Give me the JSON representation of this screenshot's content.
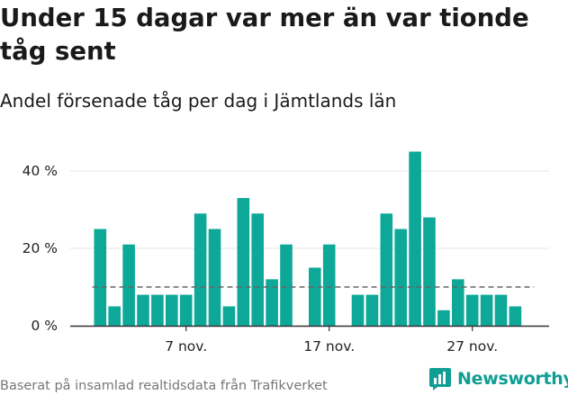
{
  "title": "Under 15 dagar var mer än var tionde tåg sent",
  "subtitle": "Andel försenade tåg per dag i Jämtlands län",
  "source": "Baserat på insamlad realtidsdata från Trafikverket",
  "brand": {
    "name": "Newsworthy",
    "icon": "newsworthy-logo-icon",
    "color": "#0f9e94"
  },
  "chart_data": {
    "type": "bar",
    "unit": "%",
    "bar_color": "#0ea899",
    "reference_line": {
      "value": 10,
      "style": "dashed",
      "color": "#666666"
    },
    "ylim": [
      0,
      47
    ],
    "yticks": [
      {
        "value": 0,
        "label": "0 %"
      },
      {
        "value": 20,
        "label": "20 %"
      },
      {
        "value": 40,
        "label": "40 %"
      }
    ],
    "xticks": [
      {
        "day": 7,
        "label": "7 nov."
      },
      {
        "day": 17,
        "label": "17 nov."
      },
      {
        "day": 27,
        "label": "27 nov."
      }
    ],
    "days": [
      1,
      2,
      3,
      4,
      5,
      6,
      7,
      8,
      9,
      10,
      11,
      12,
      13,
      14,
      15,
      16,
      17,
      18,
      19,
      20,
      21,
      22,
      23,
      24,
      25,
      26,
      27,
      28,
      29,
      30
    ],
    "values": [
      25,
      5,
      21,
      8,
      8,
      8,
      8,
      29,
      25,
      5,
      33,
      29,
      12,
      21,
      null,
      15,
      21,
      null,
      8,
      8,
      29,
      25,
      45,
      28,
      4,
      12,
      8,
      8,
      8,
      5
    ],
    "grid": true,
    "legend": "none"
  }
}
